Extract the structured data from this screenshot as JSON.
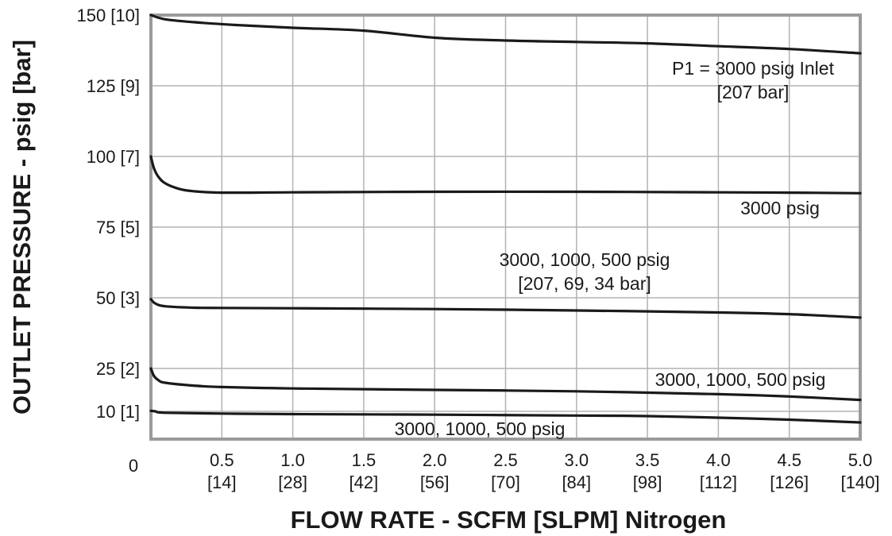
{
  "chart_data": {
    "type": "line",
    "xlabel": "FLOW RATE - SCFM [SLPM] Nitrogen",
    "ylabel": "OUTLET PRESSURE - psig [bar]",
    "xlim": [
      0,
      5.0
    ],
    "ylim": [
      0,
      150
    ],
    "grid": true,
    "origin_label": "0",
    "x_ticks": [
      {
        "value": 0.5,
        "label": "0.5",
        "sub": "[14]"
      },
      {
        "value": 1.0,
        "label": "1.0",
        "sub": "[28]"
      },
      {
        "value": 1.5,
        "label": "1.5",
        "sub": "[42]"
      },
      {
        "value": 2.0,
        "label": "2.0",
        "sub": "[56]"
      },
      {
        "value": 2.5,
        "label": "2.5",
        "sub": "[70]"
      },
      {
        "value": 3.0,
        "label": "3.0",
        "sub": "[84]"
      },
      {
        "value": 3.5,
        "label": "3.5",
        "sub": "[98]"
      },
      {
        "value": 4.0,
        "label": "4.0",
        "sub": "[112]"
      },
      {
        "value": 4.5,
        "label": "4.5",
        "sub": "[126]"
      },
      {
        "value": 5.0,
        "label": "5.0",
        "sub": "[140]"
      }
    ],
    "y_ticks": [
      {
        "value": 150,
        "label": "150 [10]"
      },
      {
        "value": 125,
        "label": "125 [9]"
      },
      {
        "value": 100,
        "label": "100 [7]"
      },
      {
        "value": 75,
        "label": "75 [5]"
      },
      {
        "value": 50,
        "label": "50 [3]"
      },
      {
        "value": 25,
        "label": "25 [2]"
      },
      {
        "value": 10,
        "label": "10 [1]"
      }
    ],
    "series": [
      {
        "x": [
          0,
          0.1,
          0.3,
          0.6,
          1.0,
          1.5,
          2.0,
          2.5,
          3.0,
          3.5,
          4.0,
          4.5,
          5.0
        ],
        "y": [
          150,
          148.5,
          147.5,
          146.5,
          145.5,
          144.5,
          142,
          141,
          140.5,
          140,
          139,
          138,
          136.5
        ]
      },
      {
        "x": [
          0,
          0.02,
          0.05,
          0.1,
          0.2,
          0.3,
          0.5,
          1.0,
          2.0,
          3.0,
          4.0,
          4.5,
          5.0
        ],
        "y": [
          100,
          96,
          93,
          90.5,
          88.5,
          87.7,
          87.2,
          87.3,
          87.5,
          87.5,
          87.3,
          87.2,
          87
        ],
        "label": "3000 psig"
      },
      {
        "x": [
          0,
          0.03,
          0.1,
          0.3,
          0.5,
          1.0,
          2.0,
          3.0,
          4.0,
          4.5,
          5.0
        ],
        "y": [
          49.5,
          48,
          47,
          46.5,
          46.4,
          46.3,
          46,
          45.5,
          44.8,
          44.2,
          43
        ],
        "label_lines": [
          "3000, 1000, 500 psig",
          "[207, 69, 34 bar]"
        ]
      },
      {
        "x": [
          0,
          0.02,
          0.05,
          0.1,
          0.3,
          0.5,
          1.0,
          2.0,
          3.0,
          4.0,
          4.5,
          5.0
        ],
        "y": [
          25,
          22.5,
          21,
          20,
          19,
          18.5,
          18,
          17.5,
          17,
          16,
          15.2,
          14
        ],
        "label": "3000, 1000, 500 psig"
      },
      {
        "x": [
          0,
          0.03,
          0.1,
          0.5,
          1.0,
          2.0,
          3.0,
          3.5,
          4.0,
          4.5,
          5.0
        ],
        "y": [
          10.2,
          10,
          9.5,
          9.2,
          9,
          8.8,
          8.5,
          8.3,
          7.7,
          7,
          6
        ],
        "label": "3000, 1000, 500 psig"
      }
    ],
    "annotations": [
      {
        "lines": [
          "P1 = 3000 psig Inlet",
          "[207 bar]"
        ]
      }
    ]
  }
}
